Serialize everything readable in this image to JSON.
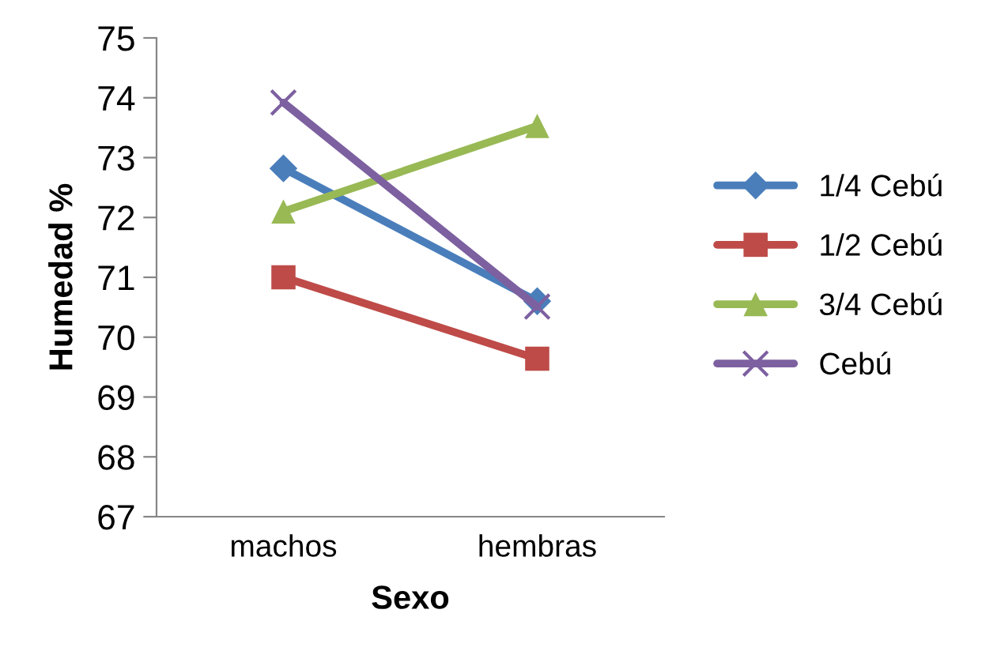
{
  "chart_data": {
    "type": "line",
    "xlabel": "Sexo",
    "ylabel": "Humedad %",
    "categories": [
      "machos",
      "hembras"
    ],
    "series": [
      {
        "name": "1/4 Cebú",
        "color": "#4a7ebb",
        "marker": "diamond",
        "values": [
          72.82,
          70.6
        ]
      },
      {
        "name": "1/2 Cebú",
        "color": "#be4b48",
        "marker": "square",
        "values": [
          71.0,
          69.64
        ]
      },
      {
        "name": "3/4 Cebú",
        "color": "#98b954",
        "marker": "triangle",
        "values": [
          72.1,
          73.53
        ]
      },
      {
        "name": "Cebú",
        "color": "#7d60a0",
        "marker": "cross",
        "values": [
          73.92,
          70.51
        ]
      }
    ],
    "ylim": [
      67,
      75
    ],
    "yticks": [
      67,
      68,
      69,
      70,
      71,
      72,
      73,
      74,
      75
    ],
    "grid": false,
    "legend": "right"
  }
}
